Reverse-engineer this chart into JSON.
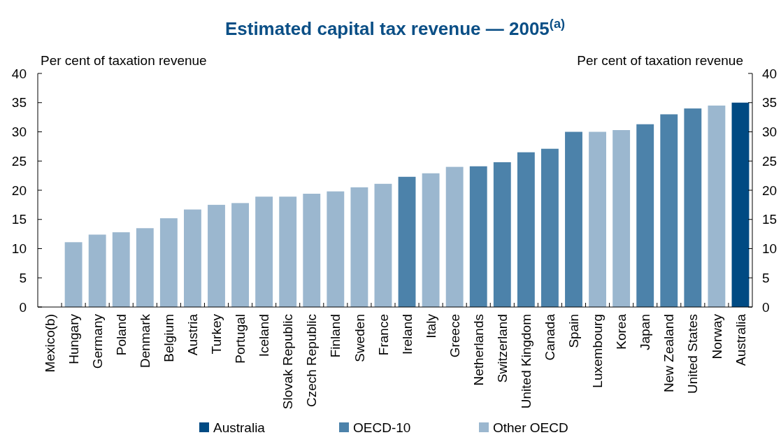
{
  "chart_data": {
    "type": "bar",
    "title": "Estimated capital tax revenue — 2005$^{(a)}$",
    "ylabel": "Per cent of taxation revenue",
    "y2label": "Per cent of taxation revenue",
    "categories": [
      "Mexico(b)",
      "Hungary",
      "Germany",
      "Poland",
      "Denmark",
      "Belgium",
      "Austria",
      "Turkey",
      "Portugal",
      "Iceland",
      "Slovak Republic",
      "Czech Republic",
      "Finland",
      "Sweden",
      "France",
      "Ireland",
      "Italy",
      "Greece",
      "Netherlands",
      "Switzerland",
      "United Kingdom",
      "Canada",
      "Spain",
      "Luxembourg",
      "Korea",
      "Japan",
      "New Zealand",
      "United States",
      "Norway",
      "Australia"
    ],
    "stacked": true,
    "series": [
      {
        "name": "Australia",
        "color": "#004a83",
        "values": [
          null,
          null,
          null,
          null,
          null,
          null,
          null,
          null,
          null,
          null,
          null,
          null,
          null,
          null,
          null,
          null,
          null,
          null,
          null,
          null,
          null,
          null,
          null,
          null,
          null,
          null,
          null,
          null,
          null,
          35.0
        ]
      },
      {
        "name": "OECD-10",
        "color": "#4c82aa",
        "values": [
          null,
          null,
          null,
          null,
          null,
          null,
          null,
          null,
          null,
          null,
          null,
          null,
          null,
          null,
          null,
          22.3,
          null,
          null,
          24.1,
          24.8,
          26.5,
          27.1,
          30.0,
          null,
          null,
          31.3,
          33.0,
          34.0,
          null,
          null
        ]
      },
      {
        "name": "Other OECD",
        "color": "#9bb7cf",
        "values": [
          null,
          11.1,
          12.4,
          12.8,
          13.5,
          15.2,
          16.7,
          17.5,
          17.8,
          18.9,
          18.9,
          19.4,
          19.8,
          20.5,
          21.1,
          null,
          22.9,
          24.0,
          null,
          null,
          null,
          null,
          null,
          30.0,
          30.3,
          null,
          null,
          null,
          34.5,
          null
        ]
      }
    ],
    "ylim": [
      0,
      40
    ],
    "yticks": [
      0,
      5,
      10,
      15,
      20,
      25,
      30,
      35,
      40
    ],
    "y2lim": [
      0,
      40
    ],
    "y2ticks": [
      0,
      5,
      10,
      15,
      20,
      25,
      30,
      35,
      40
    ],
    "legend": "bottom"
  }
}
